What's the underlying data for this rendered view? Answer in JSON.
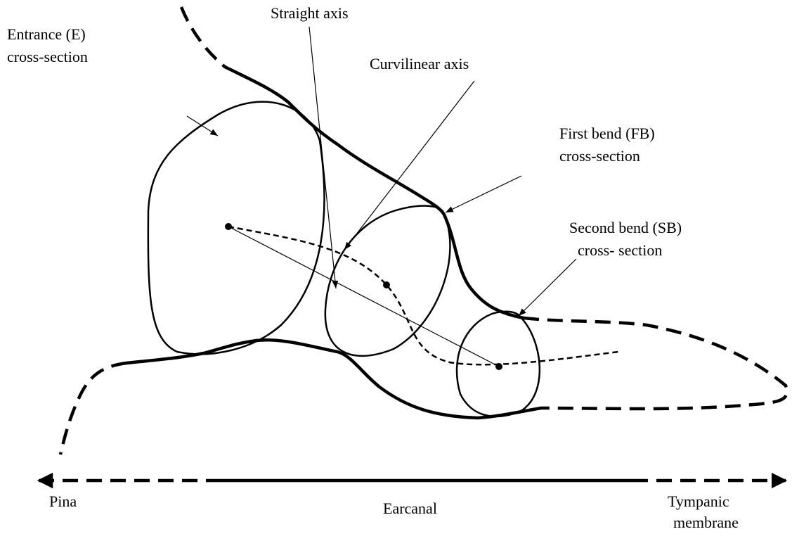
{
  "labels": [
    {
      "lines": [
        "Straight axis"
      ]
    },
    {
      "lines": [
        "Entrance (E)",
        "cross-section"
      ]
    },
    {
      "lines": [
        "Curvilinear axis"
      ]
    },
    {
      "lines": [
        "First bend (FB)",
        "cross-section"
      ]
    },
    {
      "lines": [
        "Second bend (SB)",
        "cross- section"
      ]
    }
  ],
  "axis_labels": [
    {
      "lines": [
        "Pina"
      ]
    },
    {
      "lines": [
        "Earcanal"
      ]
    },
    {
      "lines": [
        "Tympanic",
        "membrane"
      ]
    }
  ]
}
